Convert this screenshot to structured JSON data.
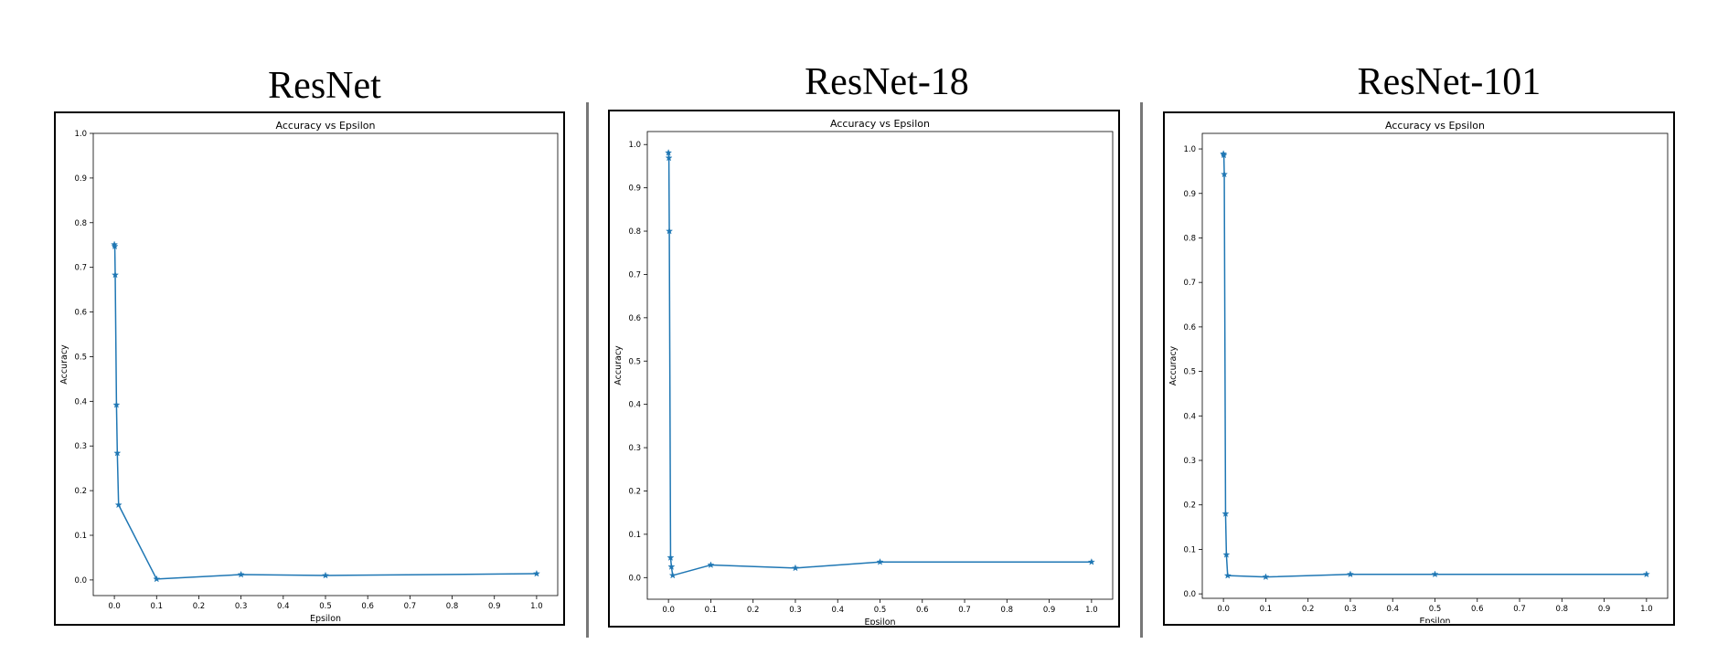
{
  "panels": [
    {
      "heading": "ResNet"
    },
    {
      "heading": "ResNet-18"
    },
    {
      "heading": "ResNet-101"
    }
  ],
  "chart_data": [
    {
      "type": "line",
      "title": "Accuracy vs Epsilon",
      "xlabel": "Epsilon",
      "ylabel": "Accuracy",
      "xlim": [
        -0.05,
        1.05
      ],
      "ylim": [
        -0.035,
        1.0
      ],
      "xticks": [
        0.0,
        0.1,
        0.2,
        0.3,
        0.4,
        0.5,
        0.6,
        0.7,
        0.8,
        0.9,
        1.0
      ],
      "yticks": [
        0.0,
        0.1,
        0.2,
        0.3,
        0.4,
        0.5,
        0.6,
        0.7,
        0.8,
        0.9,
        1.0
      ],
      "grid": false,
      "color": "#1f77b4",
      "marker": "star",
      "x": [
        0.0,
        0.001,
        0.002,
        0.005,
        0.007,
        0.01,
        0.1,
        0.3,
        0.5,
        1.0
      ],
      "y": [
        0.751,
        0.747,
        0.683,
        0.392,
        0.284,
        0.168,
        0.002,
        0.012,
        0.01,
        0.014
      ]
    },
    {
      "type": "line",
      "title": "Accuracy vs Epsilon",
      "xlabel": "Epsilon",
      "ylabel": "Accuracy",
      "xlim": [
        -0.05,
        1.05
      ],
      "ylim": [
        -0.05,
        1.03
      ],
      "xticks": [
        0.0,
        0.1,
        0.2,
        0.3,
        0.4,
        0.5,
        0.6,
        0.7,
        0.8,
        0.9,
        1.0
      ],
      "yticks": [
        0.0,
        0.1,
        0.2,
        0.3,
        0.4,
        0.5,
        0.6,
        0.7,
        0.8,
        0.9,
        1.0
      ],
      "grid": false,
      "color": "#1f77b4",
      "marker": "star",
      "x": [
        0.0,
        0.001,
        0.002,
        0.005,
        0.007,
        0.01,
        0.1,
        0.3,
        0.5,
        1.0
      ],
      "y": [
        0.981,
        0.969,
        0.8,
        0.046,
        0.025,
        0.005,
        0.029,
        0.022,
        0.036,
        0.036
      ]
    },
    {
      "type": "line",
      "title": "Accuracy vs Epsilon",
      "xlabel": "Epsilon",
      "ylabel": "Accuracy",
      "xlim": [
        -0.05,
        1.05
      ],
      "ylim": [
        -0.01,
        1.035
      ],
      "xticks": [
        0.0,
        0.1,
        0.2,
        0.3,
        0.4,
        0.5,
        0.6,
        0.7,
        0.8,
        0.9,
        1.0
      ],
      "yticks": [
        0.0,
        0.1,
        0.2,
        0.3,
        0.4,
        0.5,
        0.6,
        0.7,
        0.8,
        0.9,
        1.0
      ],
      "grid": false,
      "color": "#1f77b4",
      "marker": "star",
      "x": [
        0.0,
        0.001,
        0.002,
        0.005,
        0.007,
        0.01,
        0.1,
        0.3,
        0.5,
        1.0
      ],
      "y": [
        0.989,
        0.986,
        0.943,
        0.18,
        0.088,
        0.041,
        0.038,
        0.044,
        0.044,
        0.044
      ]
    }
  ]
}
